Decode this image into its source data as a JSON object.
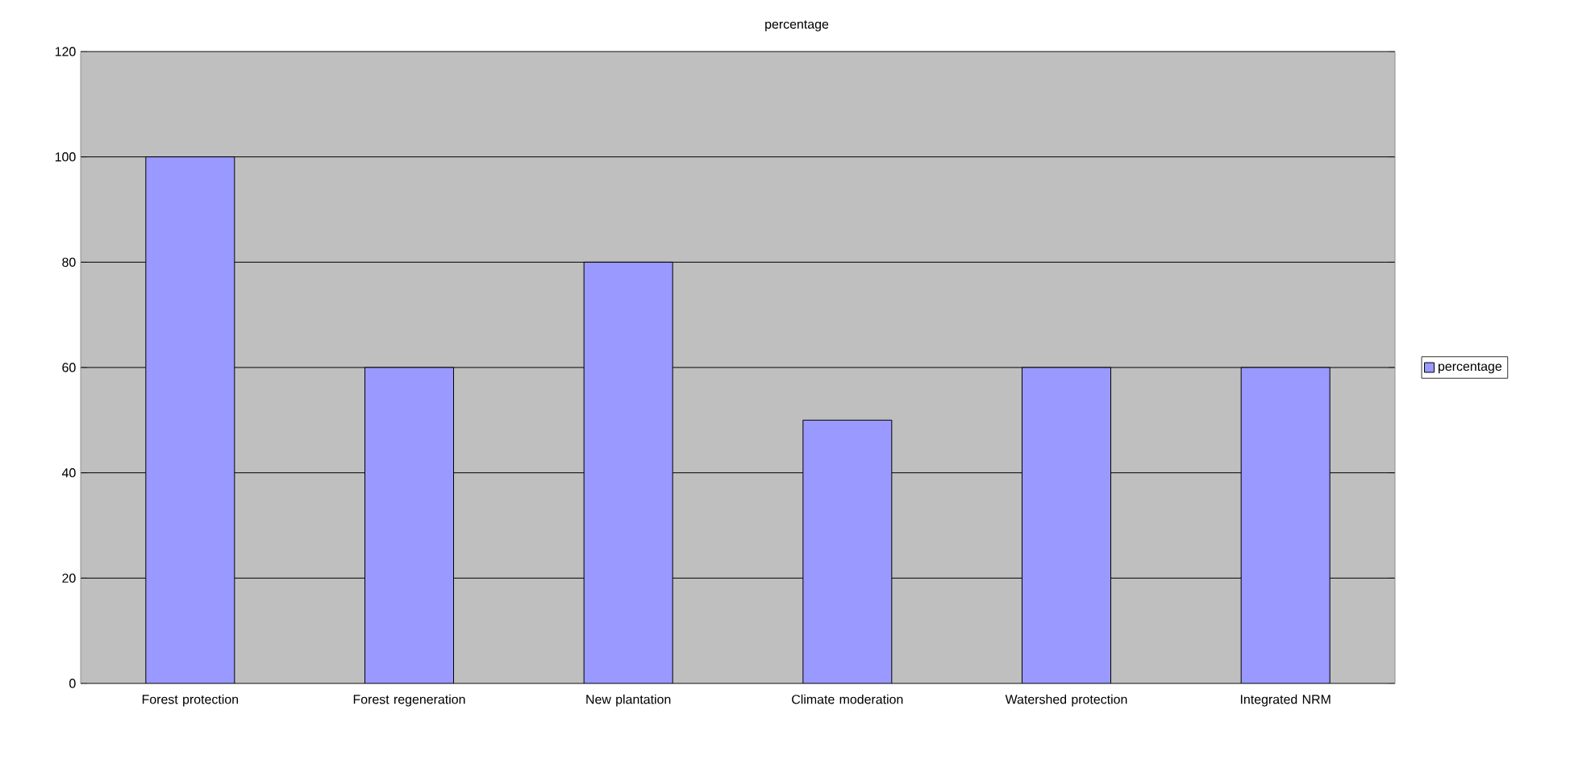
{
  "chart_data": {
    "type": "bar",
    "title": "percentage",
    "categories": [
      "Forest protection",
      "Forest regeneration",
      "New plantation",
      "Climate moderation",
      "Watershed protection",
      "Integrated NRM"
    ],
    "series": [
      {
        "name": "percentage",
        "color": "#9999ff",
        "values": [
          100,
          60,
          80,
          50,
          60,
          60
        ]
      }
    ],
    "ylim": [
      0,
      120
    ],
    "yticks": [
      0,
      20,
      40,
      60,
      80,
      100,
      120
    ],
    "grid": "y",
    "legend": "right"
  }
}
